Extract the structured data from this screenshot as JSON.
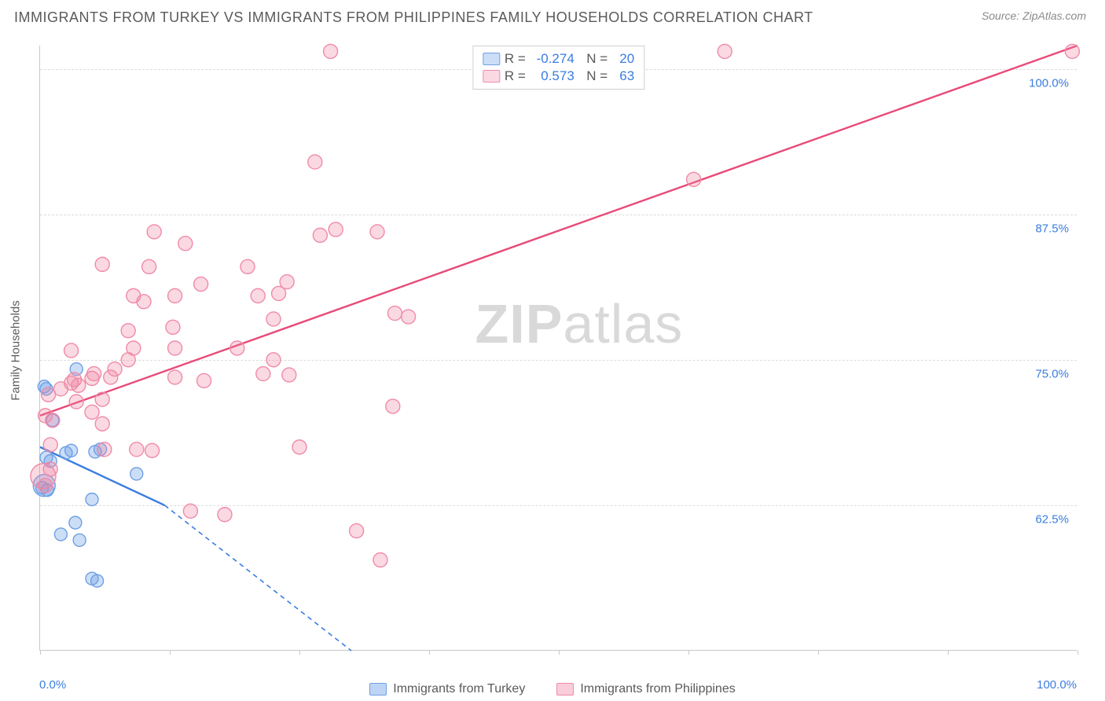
{
  "header": {
    "title": "IMMIGRANTS FROM TURKEY VS IMMIGRANTS FROM PHILIPPINES FAMILY HOUSEHOLDS CORRELATION CHART",
    "source": "Source: ZipAtlas.com"
  },
  "watermark": {
    "prefix": "ZIP",
    "suffix": "atlas"
  },
  "chart": {
    "type": "scatter",
    "xlim": [
      0,
      100
    ],
    "ylim": [
      50,
      102
    ],
    "y_gridlines": [
      62.5,
      75,
      87.5,
      100
    ],
    "ytick_labels": [
      "62.5%",
      "75.0%",
      "87.5%",
      "100.0%"
    ],
    "x_ticks": [
      0,
      12.5,
      25,
      37.5,
      50,
      62.5,
      75,
      87.5,
      100
    ],
    "xtick_left_label": "0.0%",
    "xtick_right_label": "100.0%",
    "ylabel": "Family Households",
    "background_color": "#ffffff",
    "grid_color": "#dcdcdc",
    "axis_color": "#c8c8c8",
    "tick_label_color": "#3a7de0",
    "series": [
      {
        "name": "Immigrants from Turkey",
        "color": "#3a7de0",
        "fill": "rgba(110,160,230,0.35)",
        "stroke": "#6ea0e6",
        "R": "-0.274",
        "N": "20",
        "marker_r": 8,
        "trend": {
          "x1": 0,
          "y1": 67.5,
          "x2": 12,
          "y2": 62.5,
          "dash_to_x": 30,
          "dash_to_y": 50
        },
        "points": [
          [
            0.2,
            64.0
          ],
          [
            0.4,
            64.2,
            14
          ],
          [
            0.7,
            63.8
          ],
          [
            0.6,
            66.6
          ],
          [
            1.0,
            66.3
          ],
          [
            2.5,
            67.0
          ],
          [
            3.0,
            67.2
          ],
          [
            1.2,
            69.8
          ],
          [
            0.6,
            72.5
          ],
          [
            0.4,
            72.7
          ],
          [
            3.5,
            74.2
          ],
          [
            5.0,
            63.0
          ],
          [
            5.8,
            67.3
          ],
          [
            5.3,
            67.1
          ],
          [
            9.3,
            65.2
          ],
          [
            2.0,
            60.0
          ],
          [
            3.8,
            59.5
          ],
          [
            5.0,
            56.2
          ],
          [
            5.5,
            56.0
          ],
          [
            3.4,
            61.0
          ]
        ]
      },
      {
        "name": "Immigrants from Philippines",
        "color": "#e84a78",
        "fill": "rgba(240,130,160,0.30)",
        "stroke": "#f08aa8",
        "R": "0.573",
        "N": "63",
        "marker_r": 9,
        "trend": {
          "x1": 0,
          "y1": 70.2,
          "x2": 100,
          "y2": 102
        },
        "points": [
          [
            0.3,
            65.0,
            16
          ],
          [
            0.5,
            64.2
          ],
          [
            1.0,
            65.6
          ],
          [
            1.0,
            67.7
          ],
          [
            1.2,
            69.8
          ],
          [
            0.5,
            70.2
          ],
          [
            0.8,
            72.0
          ],
          [
            2.0,
            72.5
          ],
          [
            3.0,
            73.0
          ],
          [
            3.3,
            73.3
          ],
          [
            3.5,
            71.4
          ],
          [
            3.7,
            72.8
          ],
          [
            3.0,
            75.8
          ],
          [
            5.0,
            73.4
          ],
          [
            5.2,
            73.8
          ],
          [
            6.0,
            71.6
          ],
          [
            5.0,
            70.5
          ],
          [
            6.0,
            69.5
          ],
          [
            6.2,
            67.3
          ],
          [
            9.3,
            67.3
          ],
          [
            6.8,
            73.5
          ],
          [
            7.2,
            74.2
          ],
          [
            8.5,
            75.0
          ],
          [
            9.0,
            76.0
          ],
          [
            6.0,
            83.2
          ],
          [
            8.5,
            77.5
          ],
          [
            9.0,
            80.5
          ],
          [
            10.0,
            80.0
          ],
          [
            10.5,
            83.0
          ],
          [
            11.0,
            86.0
          ],
          [
            12.8,
            77.8
          ],
          [
            13.0,
            80.5
          ],
          [
            13.0,
            73.5
          ],
          [
            13.0,
            76.0
          ],
          [
            15.8,
            73.2
          ],
          [
            15.5,
            81.5
          ],
          [
            14.0,
            85.0
          ],
          [
            19.0,
            76.0
          ],
          [
            20.0,
            83.0
          ],
          [
            21.0,
            80.5
          ],
          [
            21.5,
            73.8
          ],
          [
            22.5,
            75.0
          ],
          [
            22.5,
            78.5
          ],
          [
            23.0,
            80.7
          ],
          [
            23.8,
            81.7
          ],
          [
            24.0,
            73.7
          ],
          [
            25.0,
            67.5
          ],
          [
            27.0,
            85.7
          ],
          [
            28.5,
            86.2
          ],
          [
            26.5,
            92.0
          ],
          [
            28.0,
            101.5
          ],
          [
            32.5,
            86.0
          ],
          [
            34.2,
            79.0
          ],
          [
            34.0,
            71.0
          ],
          [
            35.5,
            78.7
          ],
          [
            17.8,
            61.7
          ],
          [
            14.5,
            62.0
          ],
          [
            30.5,
            60.3
          ],
          [
            32.8,
            57.8
          ],
          [
            10.8,
            67.2
          ],
          [
            63.0,
            90.5
          ],
          [
            66.0,
            101.5
          ],
          [
            99.5,
            101.5
          ]
        ]
      }
    ]
  },
  "legend_bottom": [
    {
      "label": "Immigrants from Turkey",
      "fill": "rgba(110,160,230,0.45)",
      "stroke": "#6ea0e6"
    },
    {
      "label": "Immigrants from Philippines",
      "fill": "rgba(240,130,160,0.40)",
      "stroke": "#f08aa8"
    }
  ]
}
